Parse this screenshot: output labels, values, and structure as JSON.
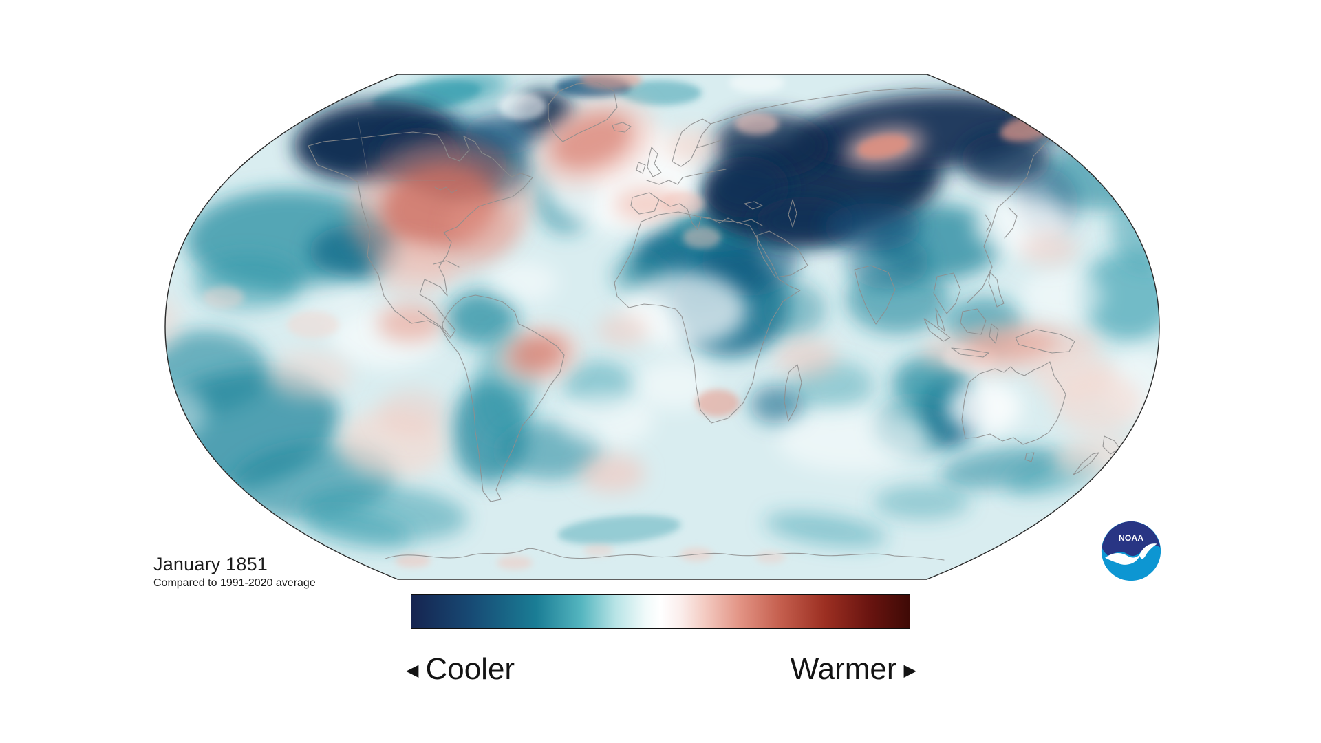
{
  "header": {
    "title": "January 1851",
    "subtitle": "Compared to 1991-2020 average"
  },
  "legend": {
    "cooler_label": "Cooler",
    "warmer_label": "Warmer",
    "cooler_arrow": "◀",
    "warmer_arrow": "▶",
    "gradient_stops": [
      [
        "0%",
        "#162450"
      ],
      [
        "12%",
        "#174a74"
      ],
      [
        "25%",
        "#1a7d95"
      ],
      [
        "34%",
        "#54b5bf"
      ],
      [
        "41%",
        "#b8e4e6"
      ],
      [
        "47%",
        "#f0fafa"
      ],
      [
        "50%",
        "#ffffff"
      ],
      [
        "54%",
        "#fbeeec"
      ],
      [
        "59%",
        "#f3cac1"
      ],
      [
        "66%",
        "#e29384"
      ],
      [
        "74%",
        "#c55f4e"
      ],
      [
        "83%",
        "#9c2f22"
      ],
      [
        "92%",
        "#691410"
      ],
      [
        "100%",
        "#3f0a06"
      ]
    ]
  },
  "logo": {
    "text": "NOAA",
    "navy": "#283584",
    "light_blue": "#0d96d2"
  },
  "map": {
    "projection": "robinson",
    "base_ocean_color": "#d9edf0",
    "outline_color": "#2a2a2a",
    "coastline_color": "#8e8e8e",
    "anomaly_summary": {
      "cooler_regions": [
        "Alaska and northwest Canada",
        "Baffin Bay",
        "Siberia and Central Asia",
        "Eastern Europe to Caspian",
        "Central Africa",
        "Tibet and China",
        "Northern South America",
        "Argentina and the Andes",
        "North Pacific band",
        "South Pacific",
        "Ocean west of Australia"
      ],
      "warmer_regions": [
        "Central and eastern North America",
        "North Atlantic southeast of Greenland",
        "Iberia and the Mediterranean",
        "Ural region",
        "Chukotka",
        "Northeast Brazil",
        "Southeast Pacific",
        "Southern Africa interior",
        "Indonesia and northern Australia",
        "Coral Sea and east of New Zealand"
      ]
    },
    "palette": {
      "navy": "#0a2a50",
      "navy2": "#0c3156",
      "steel": "#11507a",
      "tealDark": "#11688a",
      "tealDeep": "#0f6186",
      "teal": "#1f879c",
      "tealMid": "#2f9aab",
      "afrCore": "#0f5b80",
      "red": "#cf6f61",
      "redBrick": "#d88274",
      "redGl": "#db8a7c",
      "redUral": "#e08f7f",
      "salmon": "#e79c8d",
      "pinkSoft": "#f3c5bb",
      "pinkFaint": "#f6d8d0",
      "white": "#ffffff"
    },
    "anomaly_blobs": [
      [
        420,
        350,
        150,
        75,
        "teal",
        0.7,
        0
      ],
      [
        515,
        365,
        65,
        38,
        "tealDark",
        0.75,
        0
      ],
      [
        360,
        410,
        80,
        40,
        "tealMid",
        0.5,
        0
      ],
      [
        300,
        540,
        90,
        60,
        "teal",
        0.6,
        0
      ],
      [
        345,
        625,
        150,
        85,
        "teal",
        0.75,
        -10
      ],
      [
        455,
        700,
        120,
        55,
        "teal",
        0.6,
        -5
      ],
      [
        560,
        745,
        120,
        40,
        "tealMid",
        0.5,
        5
      ],
      [
        700,
        242,
        75,
        48,
        "tealDark",
        0.8,
        0
      ],
      [
        648,
        190,
        40,
        30,
        "tealDark",
        0.6,
        0
      ],
      [
        822,
        285,
        45,
        55,
        "teal",
        0.55,
        0
      ],
      [
        670,
        130,
        70,
        22,
        "tealMid",
        0.7,
        -8
      ],
      [
        960,
        135,
        60,
        18,
        "tealMid",
        0.5,
        0
      ],
      [
        1013,
        383,
        95,
        62,
        "tealDark",
        0.9,
        0
      ],
      [
        1062,
        445,
        85,
        72,
        "tealDark",
        0.85,
        0
      ],
      [
        1090,
        380,
        70,
        50,
        "afrCore",
        0.6,
        0
      ],
      [
        1040,
        332,
        70,
        25,
        "teal",
        0.7,
        0
      ],
      [
        930,
        400,
        40,
        30,
        "teal",
        0.5,
        0
      ],
      [
        1150,
        450,
        50,
        40,
        "teal",
        0.45,
        0
      ],
      [
        1305,
        435,
        75,
        50,
        "teal",
        0.6,
        0
      ],
      [
        1360,
        352,
        95,
        55,
        "teal",
        0.75,
        0
      ],
      [
        1290,
        380,
        60,
        40,
        "tealDark",
        0.5,
        0
      ],
      [
        1430,
        470,
        55,
        38,
        "teal",
        0.6,
        0
      ],
      [
        1380,
        600,
        42,
        48,
        "tealDeep",
        0.9,
        0
      ],
      [
        1352,
        558,
        55,
        40,
        "teal",
        0.7,
        0
      ],
      [
        1330,
        620,
        60,
        40,
        "teal",
        0.5,
        0
      ],
      [
        1455,
        680,
        90,
        28,
        "teal",
        0.55,
        -8
      ],
      [
        1530,
        690,
        70,
        25,
        "tealMid",
        0.5,
        -15
      ],
      [
        712,
        628,
        55,
        75,
        "teal",
        0.75,
        0
      ],
      [
        700,
        462,
        52,
        40,
        "teal",
        0.7,
        0
      ],
      [
        735,
        560,
        45,
        80,
        "tealMid",
        0.5,
        8
      ],
      [
        800,
        655,
        75,
        42,
        "teal",
        0.55,
        0
      ],
      [
        1640,
        430,
        70,
        65,
        "tealMid",
        0.6,
        0
      ],
      [
        1665,
        330,
        50,
        60,
        "tealMid",
        0.5,
        0
      ],
      [
        1600,
        255,
        85,
        50,
        "teal",
        0.6,
        0
      ],
      [
        1130,
        588,
        40,
        28,
        "tealDark",
        0.6,
        0
      ],
      [
        1210,
        560,
        60,
        35,
        "tealMid",
        0.4,
        0
      ],
      [
        870,
        560,
        50,
        35,
        "tealMid",
        0.45,
        0
      ],
      [
        620,
        140,
        80,
        20,
        "tealMid",
        0.6,
        -8
      ],
      [
        520,
        770,
        80,
        25,
        "tealMid",
        0.45,
        10
      ],
      [
        900,
        770,
        90,
        20,
        "tealMid",
        0.4,
        -5
      ],
      [
        1200,
        770,
        90,
        22,
        "tealMid",
        0.45,
        8
      ],
      [
        1340,
        730,
        70,
        25,
        "tealMid",
        0.4,
        0
      ],
      [
        545,
        205,
        118,
        58,
        "navy",
        0.97,
        -5
      ],
      [
        662,
        238,
        75,
        48,
        "navy",
        0.9,
        0
      ],
      [
        610,
        225,
        60,
        40,
        "navy2",
        0.7,
        0
      ],
      [
        790,
        166,
        45,
        34,
        "navy",
        0.95,
        0
      ],
      [
        730,
        195,
        55,
        30,
        "steel",
        0.7,
        0
      ],
      [
        862,
        126,
        55,
        16,
        "steel",
        0.75,
        0
      ],
      [
        1195,
        272,
        175,
        78,
        "navy",
        0.95,
        -8
      ],
      [
        1340,
        192,
        185,
        55,
        "navy",
        0.9,
        -4
      ],
      [
        1120,
        212,
        85,
        48,
        "navy",
        0.8,
        0
      ],
      [
        1085,
        272,
        62,
        45,
        "navy2",
        0.8,
        0
      ],
      [
        1170,
        322,
        72,
        36,
        "navy2",
        0.8,
        0
      ],
      [
        1268,
        330,
        70,
        35,
        "steel",
        0.6,
        0
      ],
      [
        1560,
        162,
        85,
        40,
        "navy",
        0.85,
        0
      ],
      [
        1462,
        232,
        65,
        40,
        "navy2",
        0.8,
        0
      ],
      [
        1522,
        295,
        45,
        50,
        "steel",
        0.4,
        0
      ],
      [
        900,
        255,
        110,
        80,
        "white",
        0.8,
        0
      ],
      [
        995,
        450,
        90,
        55,
        "white",
        0.7,
        0
      ],
      [
        560,
        490,
        80,
        45,
        "white",
        0.6,
        0
      ],
      [
        880,
        610,
        70,
        40,
        "white",
        0.5,
        0
      ],
      [
        1430,
        592,
        55,
        38,
        "white",
        0.8,
        0
      ],
      [
        1485,
        330,
        70,
        40,
        "white",
        0.7,
        0
      ],
      [
        1545,
        430,
        60,
        40,
        "white",
        0.5,
        0
      ],
      [
        1240,
        640,
        110,
        45,
        "white",
        0.5,
        0
      ],
      [
        760,
        410,
        50,
        30,
        "white",
        0.5,
        0
      ],
      [
        980,
        560,
        55,
        35,
        "white",
        0.5,
        0
      ],
      [
        760,
        155,
        35,
        20,
        "white",
        0.6,
        0
      ],
      [
        1410,
        520,
        40,
        20,
        "white",
        0.4,
        0
      ],
      [
        1100,
        120,
        40,
        15,
        "white",
        0.5,
        0
      ],
      [
        480,
        430,
        50,
        25,
        "white",
        0.4,
        0
      ],
      [
        250,
        600,
        50,
        40,
        "white",
        0.4,
        0
      ],
      [
        1655,
        560,
        50,
        50,
        "white",
        0.5,
        0
      ],
      [
        640,
        302,
        135,
        100,
        "salmon",
        0.45,
        -10
      ],
      [
        638,
        300,
        85,
        62,
        "red",
        0.8,
        -10
      ],
      [
        600,
        390,
        60,
        40,
        "pinkSoft",
        0.5,
        0
      ],
      [
        700,
        330,
        50,
        40,
        "salmon",
        0.4,
        0
      ],
      [
        862,
        208,
        95,
        60,
        "pinkSoft",
        0.55,
        -20
      ],
      [
        860,
        205,
        62,
        38,
        "redGl",
        0.8,
        -20
      ],
      [
        888,
        116,
        45,
        14,
        "salmon",
        0.6,
        0
      ],
      [
        1285,
        214,
        60,
        28,
        "pinkSoft",
        0.7,
        -10
      ],
      [
        1284,
        213,
        38,
        16,
        "redUral",
        0.85,
        -10
      ],
      [
        1495,
        186,
        42,
        18,
        "salmon",
        0.7,
        -12
      ],
      [
        1100,
        180,
        32,
        16,
        "pinkSoft",
        0.6,
        0
      ],
      [
        1005,
        212,
        40,
        25,
        "pinkFaint",
        0.7,
        0
      ],
      [
        940,
        297,
        48,
        26,
        "pinkSoft",
        0.75,
        0
      ],
      [
        992,
        296,
        32,
        18,
        "pinkSoft",
        0.6,
        0
      ],
      [
        1020,
        345,
        28,
        16,
        "pinkSoft",
        0.5,
        0
      ],
      [
        783,
        516,
        62,
        40,
        "pinkSoft",
        0.6,
        -10
      ],
      [
        782,
        514,
        40,
        26,
        "redBrick",
        0.8,
        -10
      ],
      [
        596,
        470,
        48,
        28,
        "salmon",
        0.6,
        0
      ],
      [
        570,
        645,
        80,
        50,
        "pinkFaint",
        0.65,
        0
      ],
      [
        600,
        600,
        50,
        35,
        "pinkSoft",
        0.4,
        0
      ],
      [
        450,
        545,
        60,
        35,
        "pinkFaint",
        0.5,
        0
      ],
      [
        905,
        480,
        38,
        24,
        "pinkSoft",
        0.5,
        0
      ],
      [
        890,
        688,
        48,
        28,
        "pinkSoft",
        0.6,
        0
      ],
      [
        1043,
        586,
        32,
        20,
        "salmon",
        0.6,
        0
      ],
      [
        1172,
        520,
        45,
        30,
        "pinkSoft",
        0.5,
        0
      ],
      [
        1468,
        506,
        130,
        35,
        "pinkSoft",
        0.5,
        -3
      ],
      [
        1470,
        502,
        70,
        22,
        "salmon",
        0.6,
        -3
      ],
      [
        1560,
        545,
        60,
        35,
        "pinkFaint",
        0.6,
        0
      ],
      [
        1595,
        585,
        65,
        45,
        "pinkFaint",
        0.6,
        0
      ],
      [
        1590,
        662,
        60,
        28,
        "pinkFaint",
        0.55,
        -10
      ],
      [
        1525,
        362,
        42,
        25,
        "pinkSoft",
        0.45,
        0
      ],
      [
        455,
        472,
        38,
        20,
        "pinkFaint",
        0.5,
        0
      ],
      [
        325,
        432,
        30,
        16,
        "pinkFaint",
        0.45,
        0
      ],
      [
        230,
        470,
        30,
        40,
        "pinkFaint",
        0.5,
        0
      ],
      [
        600,
        815,
        26,
        10,
        "pinkSoft",
        0.55,
        0
      ],
      [
        748,
        818,
        26,
        10,
        "pinkSoft",
        0.5,
        0
      ],
      [
        1012,
        806,
        24,
        10,
        "pinkSoft",
        0.5,
        0
      ],
      [
        870,
        800,
        22,
        9,
        "pinkSoft",
        0.4,
        0
      ],
      [
        1120,
        810,
        22,
        9,
        "pinkSoft",
        0.4,
        0
      ]
    ]
  }
}
